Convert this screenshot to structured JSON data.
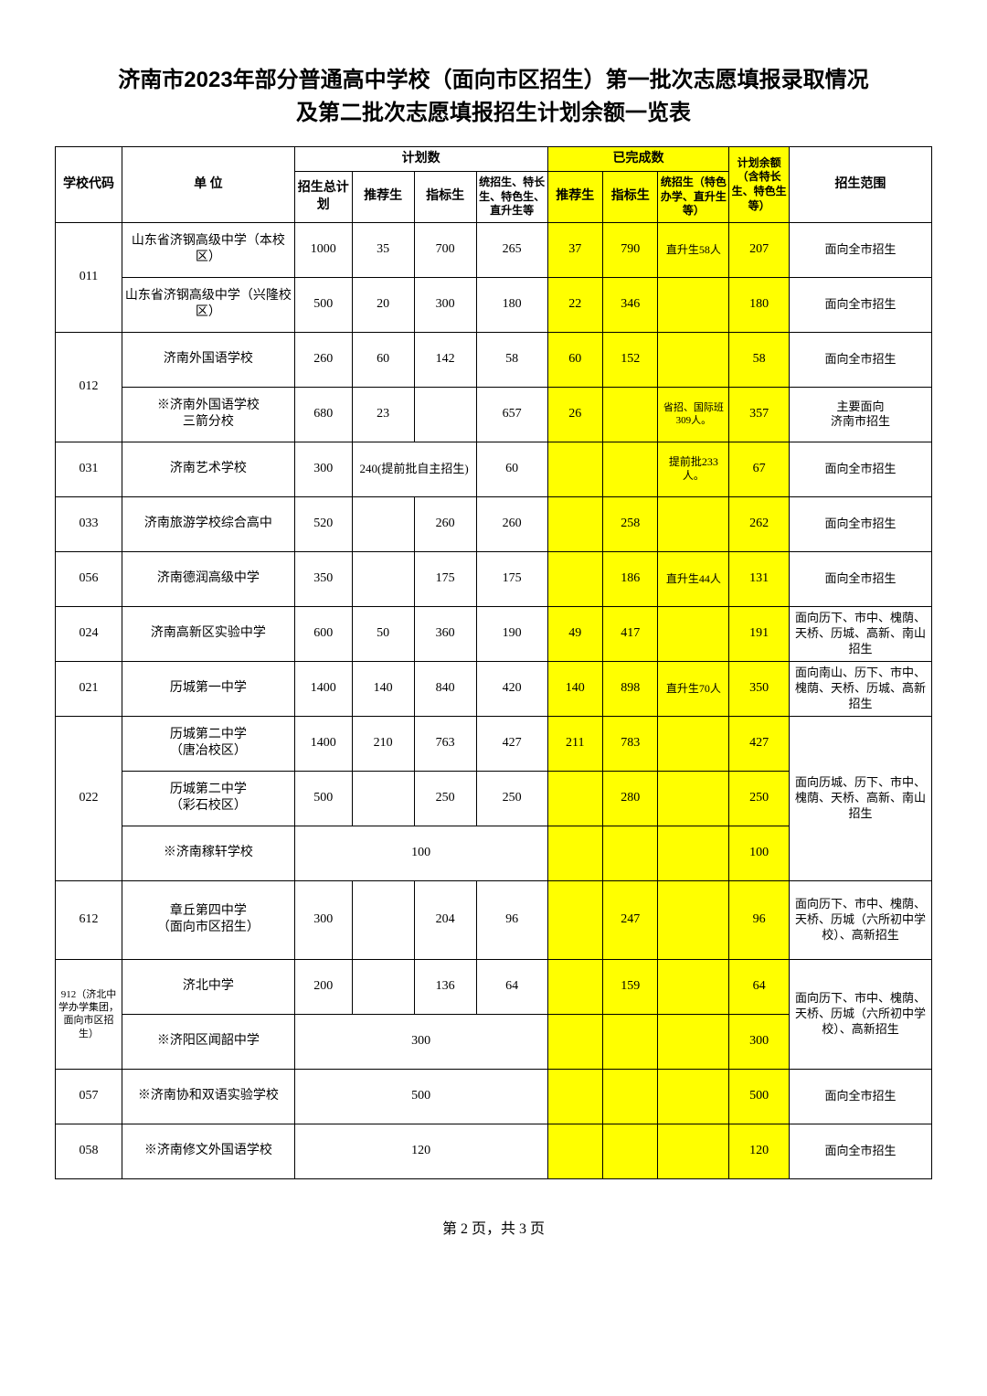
{
  "title_line1": "济南市2023年部分普通高中学校（面向市区招生）第一批次志愿填报录取情况",
  "title_line2": "及第二批次志愿填报招生计划余额一览表",
  "colors": {
    "highlight": "#ffff00",
    "border": "#000000",
    "background": "#ffffff",
    "text": "#000000"
  },
  "table": {
    "col_widths": [
      "58",
      "150",
      "50",
      "54",
      "54",
      "62",
      "48",
      "48",
      "62",
      "52",
      "124"
    ],
    "header": {
      "code": "学校代码",
      "unit": "单    位",
      "plan_group": "计划数",
      "plan_total": "招生总计划",
      "plan_rec": "推荐生",
      "plan_idx": "指标生",
      "plan_other": "统招生、特长生、特色生、直升生等",
      "done_group": "已完成数",
      "done_rec": "推荐生",
      "done_idx": "指标生",
      "done_other": "统招生（特色办学、直升生等）",
      "remain": "计划余额（含特长生、特色生等）",
      "scope": "招生范围"
    },
    "rows": [
      {
        "code": "011",
        "code_span": 2,
        "unit": "山东省济钢高级中学（本校区）",
        "p_total": "1000",
        "p_rec": "35",
        "p_idx": "700",
        "p_other": "265",
        "d_rec": "37",
        "d_idx": "790",
        "d_other": "直升生58人",
        "remain": "207",
        "scope": "面向全市招生",
        "scope_span": 1
      },
      {
        "unit": "山东省济钢高级中学（兴隆校区）",
        "p_total": "500",
        "p_rec": "20",
        "p_idx": "300",
        "p_other": "180",
        "d_rec": "22",
        "d_idx": "346",
        "d_other": "",
        "remain": "180",
        "scope": "面向全市招生",
        "scope_span": 1
      },
      {
        "code": "012",
        "code_span": 2,
        "unit": "济南外国语学校",
        "p_total": "260",
        "p_rec": "60",
        "p_idx": "142",
        "p_other": "58",
        "d_rec": "60",
        "d_idx": "152",
        "d_other": "",
        "remain": "58",
        "scope": "面向全市招生",
        "scope_span": 1
      },
      {
        "unit": "※济南外国语学校三箭分校",
        "unit_lines": [
          "※济南外国语学校",
          "三箭分校"
        ],
        "p_total": "680",
        "p_rec": "23",
        "p_idx": "",
        "p_other": "657",
        "d_rec": "26",
        "d_idx": "",
        "d_other": "省招、国际班309人。",
        "d_other_tiny": true,
        "remain": "357",
        "scope": "主要面向济南市招生",
        "scope_lines": [
          "主要面向",
          "济南市招生"
        ],
        "scope_span": 1
      },
      {
        "code": "031",
        "code_span": 1,
        "unit": "济南艺术学校",
        "p_total": "300",
        "p_rec_merge": "240(提前批自主招生)",
        "p_other": "60",
        "d_rec": "",
        "d_idx": "",
        "d_other": "提前批233人。",
        "remain": "67",
        "scope": "面向全市招生",
        "scope_span": 1
      },
      {
        "code": "033",
        "code_span": 1,
        "unit": "济南旅游学校综合高中",
        "p_total": "520",
        "p_rec": "",
        "p_idx": "260",
        "p_other": "260",
        "d_rec": "",
        "d_idx": "258",
        "d_other": "",
        "remain": "262",
        "scope": "面向全市招生",
        "scope_span": 1
      },
      {
        "code": "056",
        "code_span": 1,
        "unit": "济南德润高级中学",
        "p_total": "350",
        "p_rec": "",
        "p_idx": "175",
        "p_other": "175",
        "d_rec": "",
        "d_idx": "186",
        "d_other": "直升生44人",
        "remain": "131",
        "scope": "面向全市招生",
        "scope_span": 1
      },
      {
        "code": "024",
        "code_span": 1,
        "unit": "济南高新区实验中学",
        "p_total": "600",
        "p_rec": "50",
        "p_idx": "360",
        "p_other": "190",
        "d_rec": "49",
        "d_idx": "417",
        "d_other": "",
        "remain": "191",
        "scope": "面向历下、市中、槐荫、天桥、历城、高新、南山招生",
        "scope_span": 1
      },
      {
        "code": "021",
        "code_span": 1,
        "unit": "历城第一中学",
        "p_total": "1400",
        "p_rec": "140",
        "p_idx": "840",
        "p_other": "420",
        "d_rec": "140",
        "d_idx": "898",
        "d_other": "直升生70人",
        "remain": "350",
        "scope": "面向南山、历下、市中、槐荫、天桥、历城、高新招生",
        "scope_span": 1
      },
      {
        "code": "022",
        "code_span": 3,
        "unit": "历城第二中学（唐冶校区）",
        "unit_lines": [
          "历城第二中学",
          "（唐冶校区）"
        ],
        "p_total": "1400",
        "p_rec": "210",
        "p_idx": "763",
        "p_other": "427",
        "d_rec": "211",
        "d_idx": "783",
        "d_other": "",
        "remain": "427",
        "scope": "面向历城、历下、市中、槐荫、天桥、高新、南山招生",
        "scope_span": 3
      },
      {
        "unit": "历城第二中学（彩石校区）",
        "unit_lines": [
          "历城第二中学",
          "（彩石校区）"
        ],
        "p_total": "500",
        "p_rec": "",
        "p_idx": "250",
        "p_other": "250",
        "d_rec": "",
        "d_idx": "280",
        "d_other": "",
        "remain": "250"
      },
      {
        "unit": "※济南稼轩学校",
        "p_total_merge": "100",
        "d_rec": "",
        "d_idx": "",
        "d_other": "",
        "remain": "100",
        "remain_hl": true
      },
      {
        "code": "612",
        "code_span": 1,
        "unit": "章丘第四中学（面向市区招生）",
        "unit_lines": [
          "章丘第四中学",
          "（面向市区招生）"
        ],
        "p_total": "300",
        "p_rec": "",
        "p_idx": "204",
        "p_other": "96",
        "d_rec": "",
        "d_idx": "247",
        "d_other": "",
        "remain": "96",
        "scope": "面向历下、市中、槐荫、天桥、历城（六所初中学校）、高新招生",
        "scope_span": 1,
        "height": 86
      },
      {
        "code": "912（济北中学办学集团，面向市区招生）",
        "code_span": 2,
        "code_tiny": true,
        "unit": "济北中学",
        "p_total": "200",
        "p_rec": "",
        "p_idx": "136",
        "p_other": "64",
        "d_rec": "",
        "d_idx": "159",
        "d_other": "",
        "remain": "64",
        "scope": "面向历下、市中、槐荫、天桥、历城（六所初中学校）、高新招生",
        "scope_span": 2
      },
      {
        "unit": "※济阳区闻韶中学",
        "p_total_merge": "300",
        "d_rec": "",
        "d_idx": "",
        "d_other": "",
        "remain": "300",
        "remain_hl": true
      },
      {
        "code": "057",
        "code_span": 1,
        "unit": "※济南协和双语实验学校",
        "p_total_merge": "500",
        "d_rec": "",
        "d_idx": "",
        "d_other": "",
        "remain": "500",
        "remain_hl": true,
        "scope": "面向全市招生",
        "scope_span": 1
      },
      {
        "code": "058",
        "code_span": 1,
        "unit": "※济南修文外国语学校",
        "p_total_merge": "120",
        "d_rec": "",
        "d_idx": "",
        "d_other": "",
        "remain": "120",
        "remain_hl": true,
        "scope": "面向全市招生",
        "scope_span": 1
      }
    ]
  },
  "footer": "第 2 页，共 3 页"
}
